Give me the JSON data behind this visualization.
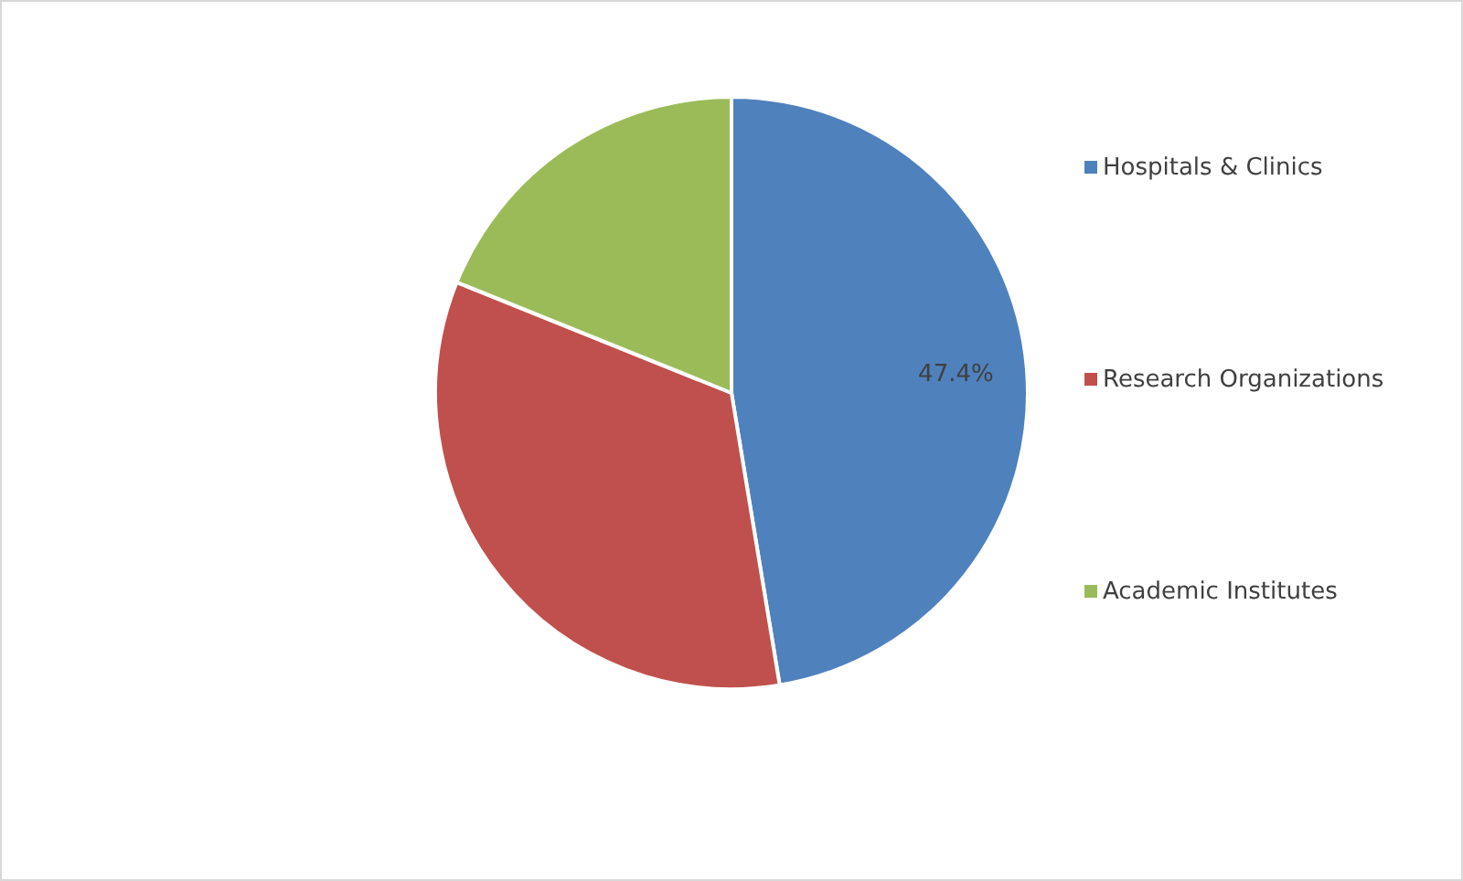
{
  "chart_data": {
    "type": "pie",
    "categories": [
      "Hospitals & Clinics",
      "Research Organizations",
      "Academic Institutes"
    ],
    "values": [
      47.4,
      33.7,
      18.9
    ],
    "colors": [
      "#4f81bd",
      "#c0504d",
      "#9bbb59"
    ],
    "value_labels": [
      "47.4%",
      null,
      null
    ],
    "legend": "right"
  }
}
